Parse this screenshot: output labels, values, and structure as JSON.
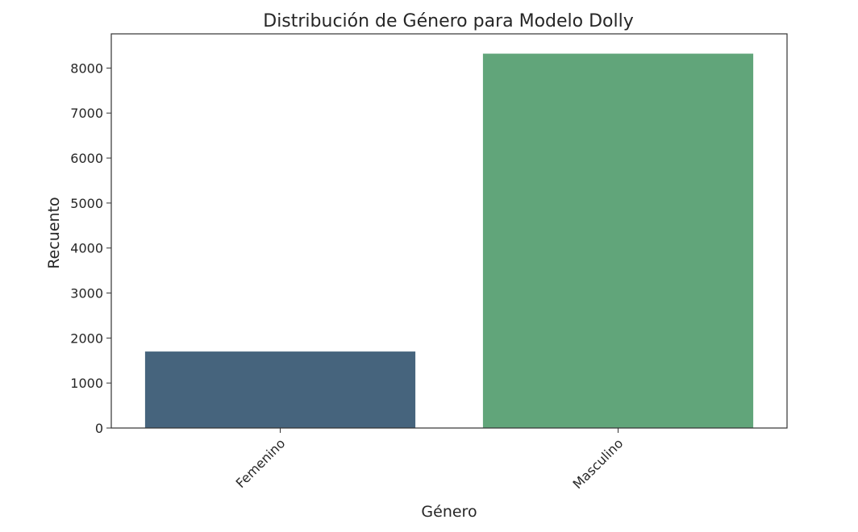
{
  "chart_data": {
    "type": "bar",
    "title": "Distribución de Género para Modelo Dolly",
    "xlabel": "Género",
    "ylabel": "Recuento",
    "categories": [
      "Femenino",
      "Masculino"
    ],
    "values": [
      1700,
      8320
    ],
    "colors": [
      "#46647d",
      "#61a57a"
    ],
    "ylim": [
      0,
      8760
    ],
    "yticks": [
      0,
      1000,
      2000,
      3000,
      4000,
      5000,
      6000,
      7000,
      8000
    ],
    "grid": false,
    "x_tick_rotation_deg": 45
  }
}
